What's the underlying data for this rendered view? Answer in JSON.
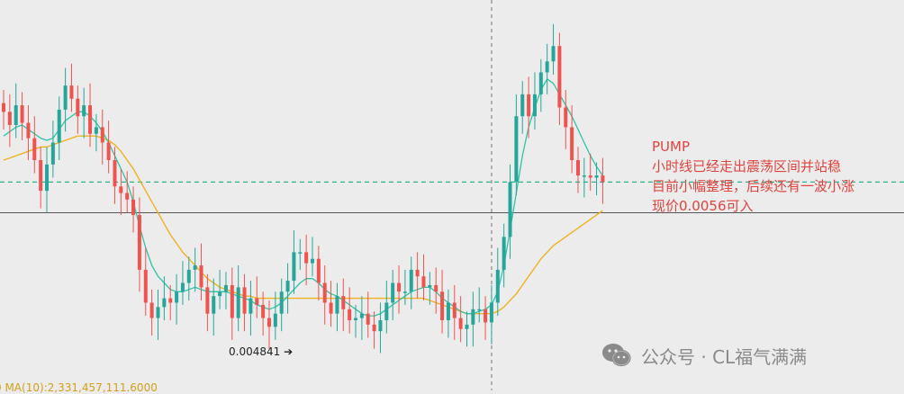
{
  "annotation": {
    "line1": "PUMP",
    "line2": "小时线已经走出震荡区间并站稳",
    "line3": "目前小幅整理，后续还有一波小涨",
    "line4": "现价0.0056可入"
  },
  "low_label": "0.004841",
  "ma_label": "0  MA(10):2,331,457,111.6000",
  "watermark": "公众号 · CL福气满满",
  "colors": {
    "up": "#26a69a",
    "down": "#ef5350",
    "ma_fast": "#2ec4a3",
    "ma_slow": "#f0b21f",
    "annotation": "#e0443f",
    "current_price_line": "#2fb38f"
  },
  "chart_data": {
    "type": "candlestick",
    "symbol": "PUMP",
    "timeframe": "1h",
    "ylim": [
      0.00465,
      0.00643
    ],
    "current_price": 0.0056,
    "horizontal_line": 0.00546,
    "marked_low": 0.004841,
    "crosshair_index": 79,
    "close": [
      0.00592,
      0.00586,
      0.00595,
      0.00587,
      0.0058,
      0.0057,
      0.00556,
      0.00568,
      0.00578,
      0.00593,
      0.00604,
      0.00598,
      0.0059,
      0.00595,
      0.00582,
      0.00585,
      0.00578,
      0.0057,
      0.00558,
      0.00555,
      0.00552,
      0.00545,
      0.0052,
      0.00505,
      0.00498,
      0.00503,
      0.00507,
      0.00505,
      0.0051,
      0.00514,
      0.0052,
      0.00522,
      0.00512,
      0.005,
      0.00508,
      0.0051,
      0.00513,
      0.00498,
      0.00512,
      0.005,
      0.00507,
      0.00504,
      0.00498,
      0.00494,
      0.005,
      0.0051,
      0.00515,
      0.00528,
      0.00528,
      0.00523,
      0.00525,
      0.00514,
      0.00505,
      0.005,
      0.00508,
      0.00502,
      0.00497,
      0.00498,
      0.005,
      0.00495,
      0.00492,
      0.00497,
      0.00505,
      0.00514,
      0.0051,
      0.0051,
      0.0052,
      0.00517,
      0.00512,
      0.00513,
      0.0051,
      0.00497,
      0.00505,
      0.00498,
      0.00493,
      0.00495,
      0.00502,
      0.00502,
      0.00496,
      0.00505,
      0.0052,
      0.00535,
      0.0056,
      0.0059,
      0.006,
      0.0059,
      0.006,
      0.0061,
      0.00615,
      0.00622,
      0.00594,
      0.00585,
      0.0057,
      0.00563,
      0.00563,
      0.00562,
      0.00563,
      0.0056
    ],
    "ma_fast": [
      0.00581,
      0.00583,
      0.00585,
      0.00586,
      0.00584,
      0.00582,
      0.0058,
      0.00579,
      0.0058,
      0.00584,
      0.00588,
      0.0059,
      0.00592,
      0.00592,
      0.0059,
      0.00587,
      0.00583,
      0.00578,
      0.00572,
      0.00566,
      0.0056,
      0.00551,
      0.0054,
      0.0053,
      0.00522,
      0.00517,
      0.00514,
      0.00511,
      0.0051,
      0.0051,
      0.00511,
      0.00512,
      0.00511,
      0.0051,
      0.0051,
      0.0051,
      0.0051,
      0.00509,
      0.00508,
      0.00507,
      0.00506,
      0.00504,
      0.00503,
      0.00502,
      0.00503,
      0.00505,
      0.00508,
      0.00511,
      0.00514,
      0.00516,
      0.00516,
      0.00514,
      0.00511,
      0.00509,
      0.00508,
      0.00506,
      0.00504,
      0.00502,
      0.005,
      0.00499,
      0.00499,
      0.005,
      0.00502,
      0.00504,
      0.00506,
      0.00508,
      0.0051,
      0.00511,
      0.00512,
      0.00512,
      0.0051,
      0.00507,
      0.00505,
      0.00503,
      0.00501,
      0.005,
      0.005,
      0.00501,
      0.00502,
      0.00504,
      0.0051,
      0.00522,
      0.00538,
      0.00555,
      0.00572,
      0.00585,
      0.00594,
      0.00602,
      0.00607,
      0.00605,
      0.006,
      0.00595,
      0.0059,
      0.00584,
      0.00578,
      0.00572,
      0.00567,
      0.00563
    ],
    "ma_slow": [
      0.0057,
      0.00571,
      0.00572,
      0.00573,
      0.00574,
      0.00575,
      0.00576,
      0.00576,
      0.00577,
      0.00578,
      0.00579,
      0.0058,
      0.00581,
      0.00581,
      0.00581,
      0.00581,
      0.0058,
      0.00579,
      0.00577,
      0.00574,
      0.0057,
      0.00566,
      0.00561,
      0.00556,
      0.00551,
      0.00546,
      0.00541,
      0.00536,
      0.00532,
      0.00528,
      0.00525,
      0.00522,
      0.00519,
      0.00516,
      0.00514,
      0.00512,
      0.00511,
      0.0051,
      0.00509,
      0.00508,
      0.00508,
      0.00507,
      0.00507,
      0.00507,
      0.00507,
      0.00507,
      0.00507,
      0.00507,
      0.00507,
      0.00507,
      0.00507,
      0.00507,
      0.00507,
      0.00507,
      0.00507,
      0.00507,
      0.00507,
      0.00507,
      0.00507,
      0.00507,
      0.00507,
      0.00507,
      0.00507,
      0.00507,
      0.00507,
      0.00507,
      0.00507,
      0.00507,
      0.00507,
      0.00506,
      0.00505,
      0.00504,
      0.00503,
      0.00502,
      0.00501,
      0.005,
      0.005,
      0.005,
      0.005,
      0.005,
      0.00501,
      0.00503,
      0.00506,
      0.00509,
      0.00513,
      0.00517,
      0.00521,
      0.00525,
      0.00528,
      0.00531,
      0.00533,
      0.00535,
      0.00537,
      0.00539,
      0.00541,
      0.00543,
      0.00545,
      0.00547
    ]
  }
}
